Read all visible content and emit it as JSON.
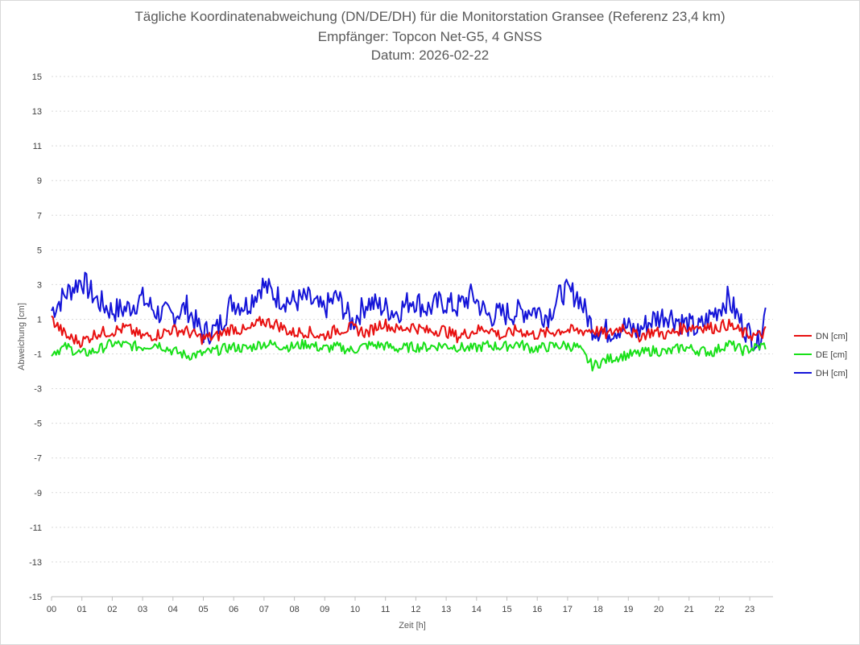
{
  "chart_data": {
    "type": "line",
    "title": "Tägliche Koordinatenabweichung (DN/DE/DH) für die Monitorstation Gransee (Referenz 23,4 km)",
    "subtitle": "Empfänger: Topcon Net-G5, 4 GNSS",
    "date_label": "Datum: 2026-02-22",
    "xlabel": "Zeit [h]",
    "ylabel": "Abweichung [cm]",
    "ylim": [
      -15,
      15
    ],
    "yticks": [
      "15",
      "13",
      "11",
      "9",
      "7",
      "5",
      "3",
      "1",
      "-1",
      "-3",
      "-5",
      "-7",
      "-9",
      "-11",
      "-13",
      "-15"
    ],
    "xlim": [
      0,
      24
    ],
    "xticks": [
      "00",
      "01",
      "02",
      "03",
      "04",
      "05",
      "06",
      "07",
      "08",
      "09",
      "10",
      "11",
      "12",
      "13",
      "14",
      "15",
      "16",
      "17",
      "18",
      "19",
      "20",
      "21",
      "22",
      "23"
    ],
    "grid": true,
    "legend_position": "right",
    "x": [
      0,
      0.5,
      1,
      1.5,
      2,
      2.5,
      3,
      3.5,
      4,
      4.5,
      5,
      5.5,
      6,
      6.5,
      7,
      7.5,
      8,
      8.5,
      9,
      9.5,
      10,
      10.5,
      11,
      11.5,
      12,
      12.5,
      13,
      13.5,
      14,
      14.5,
      15,
      15.5,
      16,
      16.5,
      17,
      17.5,
      18,
      18.5,
      19,
      19.5,
      20,
      20.5,
      21,
      21.5,
      22,
      22.5,
      23,
      23.5,
      23.75
    ],
    "series": [
      {
        "name": "DN [cm]",
        "color": "#e81010",
        "values": [
          1.0,
          0.0,
          -0.3,
          0.2,
          0.3,
          0.5,
          0.0,
          0.1,
          0.4,
          0.3,
          -0.1,
          0.0,
          0.5,
          0.3,
          0.9,
          0.7,
          0.2,
          0.3,
          0.0,
          0.4,
          0.5,
          0.2,
          0.8,
          0.4,
          0.6,
          0.3,
          0.4,
          0.0,
          0.3,
          0.5,
          0.0,
          0.4,
          0.1,
          0.2,
          0.4,
          0.3,
          0.4,
          0.1,
          0.6,
          0.0,
          0.3,
          0.1,
          0.5,
          0.6,
          0.5,
          0.7,
          0.2,
          0.0,
          0.3
        ]
      },
      {
        "name": "DE [cm]",
        "color": "#18e018",
        "values": [
          -0.9,
          -0.6,
          -1.0,
          -0.8,
          -0.4,
          -0.5,
          -0.6,
          -0.4,
          -0.8,
          -1.1,
          -1.0,
          -0.8,
          -0.6,
          -0.7,
          -0.4,
          -0.5,
          -0.6,
          -0.4,
          -0.7,
          -0.6,
          -0.8,
          -0.5,
          -0.5,
          -0.7,
          -0.6,
          -0.6,
          -0.5,
          -0.6,
          -0.7,
          -0.5,
          -0.6,
          -0.4,
          -0.7,
          -0.6,
          -0.5,
          -0.6,
          -1.7,
          -1.3,
          -1.1,
          -1.0,
          -0.8,
          -0.9,
          -0.6,
          -0.8,
          -0.9,
          -0.4,
          -0.8,
          -0.6,
          -0.5
        ]
      },
      {
        "name": "DH [cm]",
        "color": "#1414d8",
        "values": [
          1.5,
          2.5,
          3.3,
          2.1,
          1.5,
          1.6,
          2.2,
          1.4,
          1.2,
          1.7,
          0.2,
          0.4,
          2.0,
          1.8,
          3.0,
          2.3,
          2.0,
          2.2,
          1.5,
          2.3,
          0.8,
          2.0,
          1.7,
          1.4,
          2.2,
          1.6,
          2.0,
          1.7,
          2.4,
          1.2,
          1.3,
          1.4,
          1.6,
          1.2,
          2.6,
          2.4,
          0.5,
          0.3,
          0.6,
          0.3,
          1.0,
          1.3,
          0.8,
          0.4,
          1.3,
          2.2,
          0.6,
          -0.4,
          1.5
        ]
      }
    ]
  }
}
